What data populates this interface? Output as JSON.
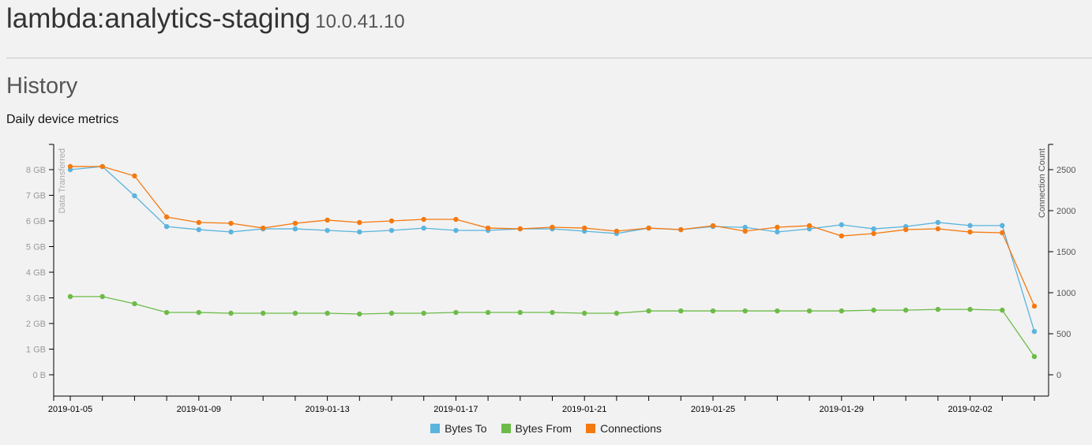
{
  "header": {
    "title": "lambda:analytics-staging",
    "ip": "10.0.41.10"
  },
  "section": {
    "title": "History",
    "subtitle": "Daily device metrics"
  },
  "chart_data": {
    "type": "line",
    "title": "Daily device metrics",
    "x": [
      "2019-01-05",
      "2019-01-06",
      "2019-01-07",
      "2019-01-08",
      "2019-01-09",
      "2019-01-10",
      "2019-01-11",
      "2019-01-12",
      "2019-01-13",
      "2019-01-14",
      "2019-01-15",
      "2019-01-16",
      "2019-01-17",
      "2019-01-18",
      "2019-01-19",
      "2019-01-20",
      "2019-01-21",
      "2019-01-22",
      "2019-01-23",
      "2019-01-24",
      "2019-01-25",
      "2019-01-26",
      "2019-01-27",
      "2019-01-28",
      "2019-01-29",
      "2019-01-30",
      "2019-01-31",
      "2019-02-01",
      "2019-02-02",
      "2019-02-03",
      "2019-02-04"
    ],
    "x_tick_labels": [
      "2019-01-05",
      "2019-01-09",
      "2019-01-13",
      "2019-01-17",
      "2019-01-21",
      "2019-01-25",
      "2019-01-29",
      "2019-02-02"
    ],
    "ylabel_left": "Data Transferred",
    "ylabel_right": "Connection Count",
    "ylim_left_gb": [
      -0.85,
      8.95
    ],
    "ylim_right": [
      0,
      2800
    ],
    "y_left_ticks": [
      "0 B",
      "1 GB",
      "2 GB",
      "3 GB",
      "4 GB",
      "5 GB",
      "6 GB",
      "7 GB",
      "8 GB"
    ],
    "y_right_ticks": [
      "0",
      "500",
      "1000",
      "1500",
      "2000",
      "2500"
    ],
    "legend": "bottom",
    "series": [
      {
        "name": "Bytes To",
        "axis": "left",
        "color": "#5ab4de",
        "values": [
          8.0,
          8.12,
          6.98,
          5.78,
          5.66,
          5.57,
          5.69,
          5.69,
          5.63,
          5.57,
          5.63,
          5.72,
          5.63,
          5.63,
          5.69,
          5.69,
          5.6,
          5.51,
          5.72,
          5.66,
          5.78,
          5.75,
          5.57,
          5.69,
          5.85,
          5.69,
          5.78,
          5.94,
          5.82,
          5.82,
          1.69
        ]
      },
      {
        "name": "Bytes From",
        "axis": "left",
        "color": "#6cbb48",
        "values": [
          3.05,
          3.05,
          2.77,
          2.43,
          2.43,
          2.4,
          2.4,
          2.4,
          2.4,
          2.37,
          2.4,
          2.4,
          2.43,
          2.43,
          2.43,
          2.43,
          2.4,
          2.4,
          2.49,
          2.49,
          2.49,
          2.49,
          2.49,
          2.49,
          2.49,
          2.52,
          2.52,
          2.55,
          2.55,
          2.52,
          0.71
        ]
      },
      {
        "name": "Connections",
        "axis": "right",
        "color": "#f47a10",
        "values": [
          2538,
          2538,
          2423,
          1923,
          1856,
          1846,
          1788,
          1846,
          1885,
          1856,
          1875,
          1894,
          1894,
          1788,
          1779,
          1798,
          1788,
          1750,
          1788,
          1769,
          1817,
          1750,
          1798,
          1817,
          1692,
          1721,
          1769,
          1779,
          1740,
          1731,
          837
        ]
      }
    ]
  }
}
